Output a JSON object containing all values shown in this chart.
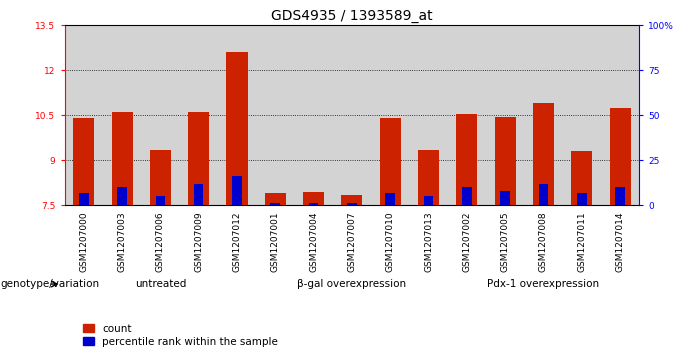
{
  "title": "GDS4935 / 1393589_at",
  "samples": [
    "GSM1207000",
    "GSM1207003",
    "GSM1207006",
    "GSM1207009",
    "GSM1207012",
    "GSM1207001",
    "GSM1207004",
    "GSM1207007",
    "GSM1207010",
    "GSM1207013",
    "GSM1207002",
    "GSM1207005",
    "GSM1207008",
    "GSM1207011",
    "GSM1207014"
  ],
  "count_values": [
    10.4,
    10.6,
    9.35,
    10.6,
    12.6,
    7.9,
    7.95,
    7.85,
    10.4,
    9.35,
    10.55,
    10.45,
    10.9,
    9.3,
    10.75
  ],
  "percentile_values": [
    7,
    10,
    5,
    12,
    16,
    1,
    1,
    1,
    7,
    5,
    10,
    8,
    12,
    7,
    10
  ],
  "ylim_left": [
    7.5,
    13.5
  ],
  "ylim_right": [
    0,
    100
  ],
  "yticks_left": [
    7.5,
    9.0,
    10.5,
    12.0,
    13.5
  ],
  "yticks_right": [
    0,
    25,
    50,
    75,
    100
  ],
  "ytick_labels_left": [
    "7.5",
    "9",
    "10.5",
    "12",
    "13.5"
  ],
  "ytick_labels_right": [
    "0",
    "25",
    "50",
    "75",
    "100%"
  ],
  "groups": [
    {
      "label": "untreated",
      "indices": [
        0,
        1,
        2,
        3,
        4
      ]
    },
    {
      "label": "β-gal overexpression",
      "indices": [
        5,
        6,
        7,
        8,
        9
      ]
    },
    {
      "label": "Pdx-1 overexpression",
      "indices": [
        10,
        11,
        12,
        13,
        14
      ]
    }
  ],
  "bar_color_red": "#CC2200",
  "bar_color_blue": "#0000CC",
  "bar_width": 0.55,
  "blue_bar_width": 0.25,
  "bg_color": "#D3D3D3",
  "plot_bg": "#FFFFFF",
  "genotype_label": "genotype/variation",
  "legend_count": "count",
  "legend_percentile": "percentile rank within the sample",
  "title_fontsize": 10,
  "tick_fontsize": 6.5,
  "label_fontsize": 7.5,
  "group_label_fontsize": 7.5,
  "genotype_fontsize": 7.5
}
